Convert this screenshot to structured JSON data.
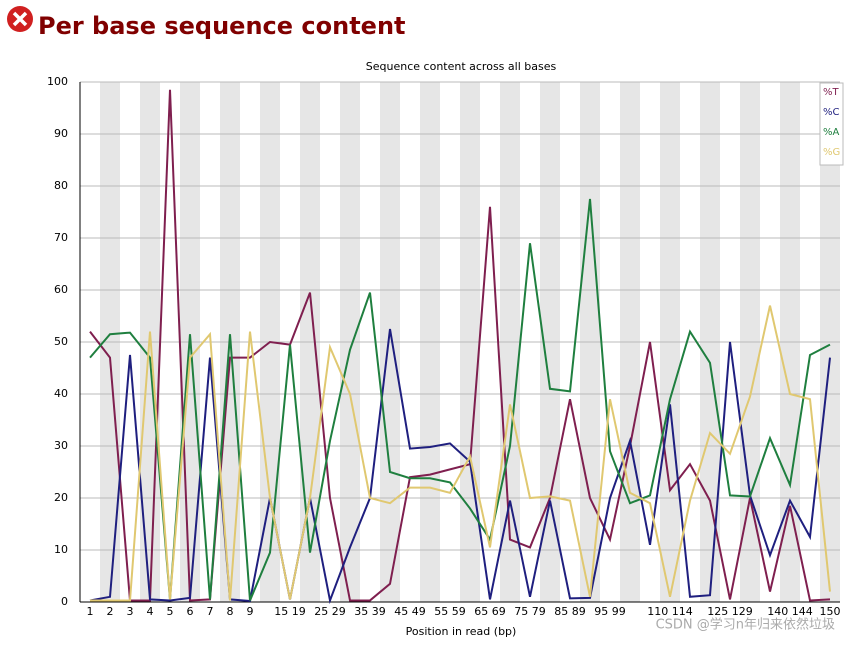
{
  "header": {
    "title": "Per base sequence content"
  },
  "watermark": "CSDN @学习n年归来依然垃圾",
  "chart_data": {
    "type": "line",
    "title": "Sequence content across all bases",
    "x_label": "Position in read (bp)",
    "categories": [
      "1",
      "2",
      "3",
      "4",
      "5",
      "6",
      "7",
      "8",
      "9",
      null,
      "15 19",
      null,
      "25 29",
      null,
      "35 39",
      null,
      "45 49",
      null,
      "55 59",
      null,
      "65 69",
      null,
      "75 79",
      null,
      "85 89",
      null,
      "95 99",
      null,
      null,
      "110 114",
      null,
      null,
      "125 129",
      null,
      null,
      "140 144",
      null,
      "150"
    ],
    "series": [
      {
        "name": "%T",
        "color": "#7f1f4f",
        "values": [
          52,
          47,
          0.3,
          0.3,
          98.5,
          0.3,
          0.5,
          47,
          47,
          50,
          49.5,
          59.5,
          20,
          0.3,
          0.3,
          3.5,
          24,
          24.5,
          25.5,
          26.5,
          76,
          12,
          10.5,
          20,
          39,
          20,
          12,
          30,
          50,
          21.5,
          26.5,
          19.5,
          0.5,
          20,
          2,
          18.5,
          0.3,
          0.5
        ]
      },
      {
        "name": "%C",
        "color": "#1f1f7f",
        "values": [
          0.3,
          1,
          47.5,
          0.5,
          0.3,
          0.8,
          47,
          0.5,
          0.2,
          20,
          0.5,
          20,
          0.3,
          10.5,
          20,
          52.5,
          29.5,
          29.8,
          30.5,
          27,
          0.5,
          19.5,
          1,
          19.5,
          0.7,
          0.8,
          20,
          31,
          11,
          38,
          1,
          1.3,
          50,
          20.5,
          9,
          19.5,
          12.5,
          47
        ]
      },
      {
        "name": "%A",
        "color": "#1f7f3f",
        "values": [
          47,
          51.5,
          51.8,
          47,
          0.5,
          51.5,
          0.5,
          51.5,
          0.3,
          9.5,
          49.5,
          9.5,
          31,
          48.5,
          59.5,
          25,
          23.8,
          23.8,
          23,
          18,
          12,
          30,
          69,
          41,
          40.5,
          77.5,
          29,
          19,
          20.5,
          39,
          52,
          46,
          20.5,
          20.3,
          31.5,
          22.5,
          47.5,
          49.5
        ]
      },
      {
        "name": "%G",
        "color": "#e0c870",
        "values": [
          0.3,
          0.3,
          0.3,
          52,
          0.5,
          47,
          51.5,
          0.3,
          52,
          20,
          0.5,
          20,
          49,
          40,
          20,
          19,
          22,
          22,
          21,
          28,
          10.5,
          38,
          20,
          20.3,
          19.5,
          1,
          39,
          21,
          19,
          1,
          19.5,
          32.5,
          28.5,
          39.5,
          57,
          40,
          39,
          2
        ]
      }
    ],
    "ylim": [
      0,
      100
    ],
    "yticks": [
      0,
      10,
      20,
      30,
      40,
      50,
      60,
      70,
      80,
      90,
      100
    ],
    "grid": true,
    "stripes": true,
    "legend": "top-right"
  }
}
